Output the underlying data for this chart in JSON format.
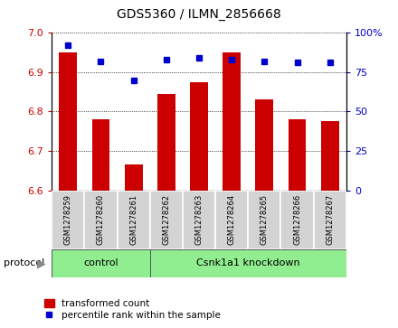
{
  "title": "GDS5360 / ILMN_2856668",
  "samples": [
    "GSM1278259",
    "GSM1278260",
    "GSM1278261",
    "GSM1278262",
    "GSM1278263",
    "GSM1278264",
    "GSM1278265",
    "GSM1278266",
    "GSM1278267"
  ],
  "transformed_counts": [
    6.95,
    6.78,
    6.665,
    6.845,
    6.875,
    6.95,
    6.83,
    6.78,
    6.775
  ],
  "percentile_ranks": [
    92,
    82,
    70,
    83,
    84,
    83,
    82,
    81,
    81
  ],
  "ylim_left": [
    6.6,
    7.0
  ],
  "ylim_right": [
    0,
    100
  ],
  "yticks_left": [
    6.6,
    6.7,
    6.8,
    6.9,
    7.0
  ],
  "yticks_right": [
    0,
    25,
    50,
    75,
    100
  ],
  "bar_color": "#cc0000",
  "dot_color": "#0000cc",
  "legend_bar_label": "transformed count",
  "legend_dot_label": "percentile rank within the sample",
  "protocol_label": "protocol",
  "control_label": "control",
  "knockdown_label": "Csnk1a1 knockdown",
  "control_count": 3,
  "knockdown_count": 6
}
